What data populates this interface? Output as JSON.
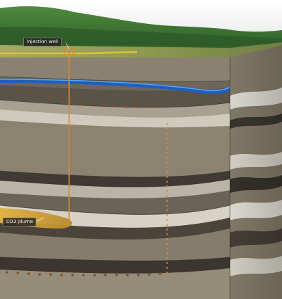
{
  "labels": {
    "injection_well": "injection well",
    "co2_plume": "CO2 plume"
  },
  "colors": {
    "sky": "#f4f6f4",
    "hills": "#3f7a34",
    "field": "#9fa35a",
    "surface_line": "#d8c43a",
    "aquifer": "#1c5fc4",
    "plume": "#d9a73c",
    "well": "#d88a3a",
    "perforation": "#8a4a22"
  }
}
